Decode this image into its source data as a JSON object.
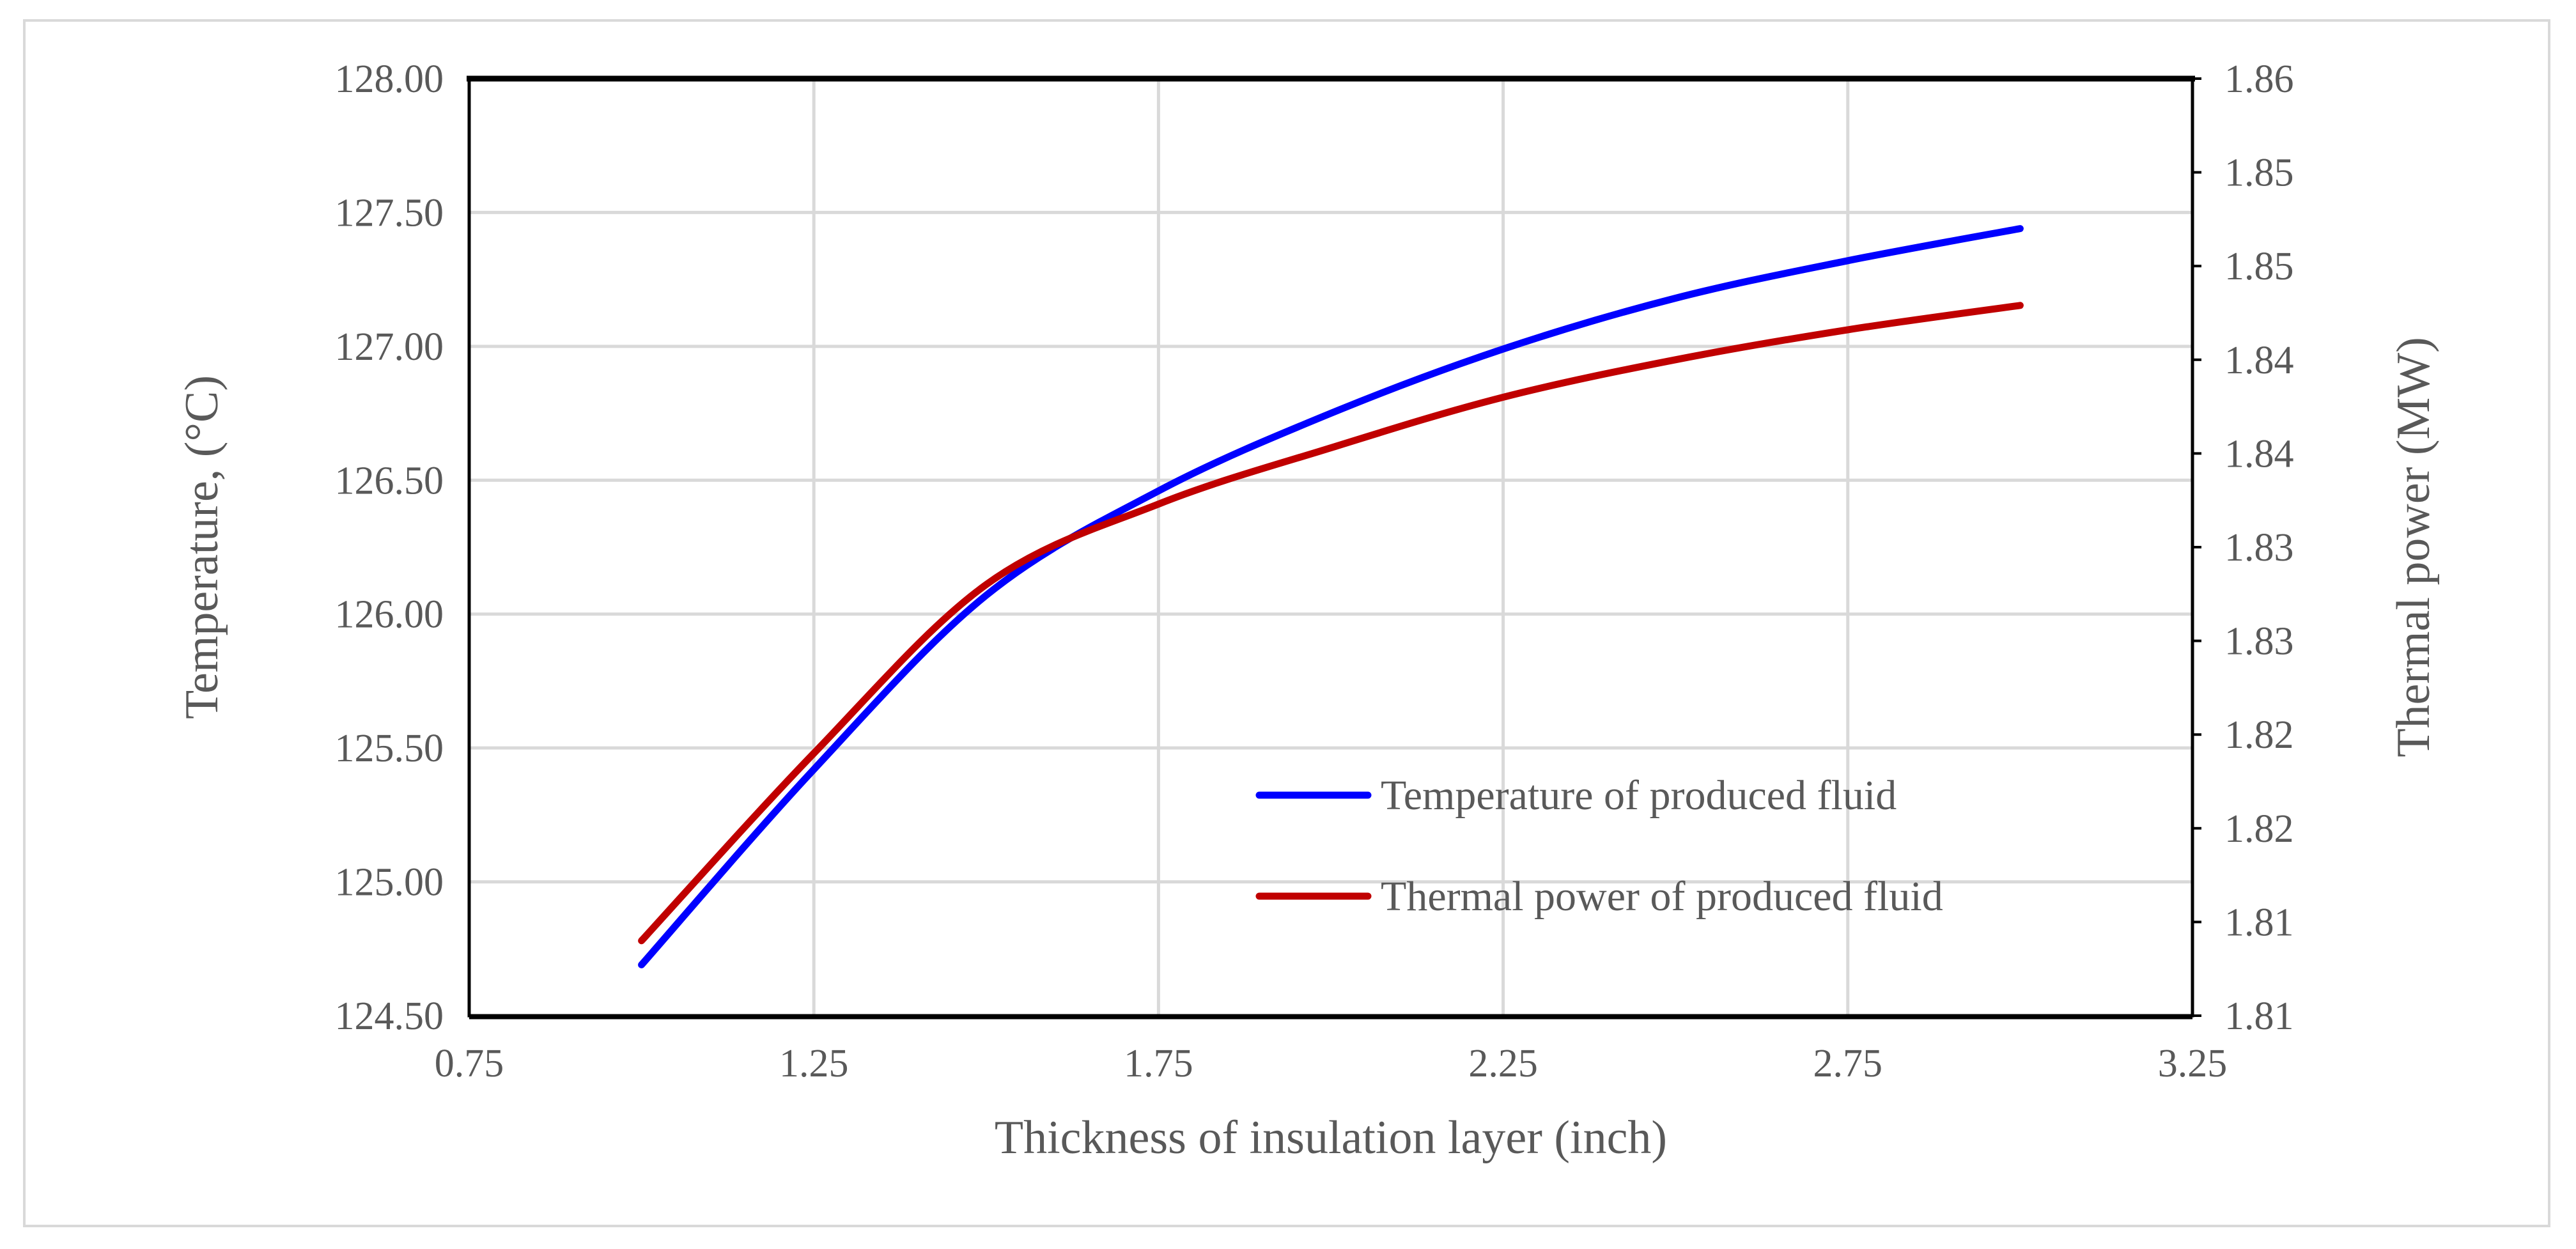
{
  "chart_data": {
    "type": "line",
    "title": "",
    "xlabel": "Thickness of insulation layer (inch)",
    "ylabel": "Temperature, (°C)",
    "y2label": "Thermal power (MW)",
    "xlim": [
      0.75,
      3.25
    ],
    "ylim": [
      124.5,
      128.0
    ],
    "y2lim": [
      1.8075,
      1.8575
    ],
    "grid": true,
    "legend_position": "lower-right",
    "x_tick_labels": [
      "0.75",
      "1.25",
      "1.75",
      "2.25",
      "2.75",
      "3.25"
    ],
    "y_tick_labels": [
      "124.50",
      "125.00",
      "125.50",
      "126.00",
      "126.50",
      "127.00",
      "127.50",
      "128.00"
    ],
    "y2_tick_labels": [
      "1.81",
      "1.81",
      "1.82",
      "1.82",
      "1.83",
      "1.83",
      "1.84",
      "1.84",
      "1.85",
      "1.85",
      "1.86"
    ],
    "x": [
      1.0,
      1.25,
      1.5,
      1.75,
      2.0,
      2.25,
      2.5,
      2.75,
      3.0
    ],
    "series": [
      {
        "name": "Temperature of produced fluid",
        "axis": "left",
        "color": "#0000ff",
        "values": [
          124.69,
          125.42,
          126.07,
          126.46,
          126.75,
          126.99,
          127.18,
          127.32,
          127.44
        ]
      },
      {
        "name": "Thermal power of produced fluid",
        "axis": "right",
        "color": "#c00000",
        "values": [
          1.8115,
          1.8215,
          1.8305,
          1.8348,
          1.8378,
          1.8405,
          1.8425,
          1.8441,
          1.8454
        ]
      }
    ]
  }
}
